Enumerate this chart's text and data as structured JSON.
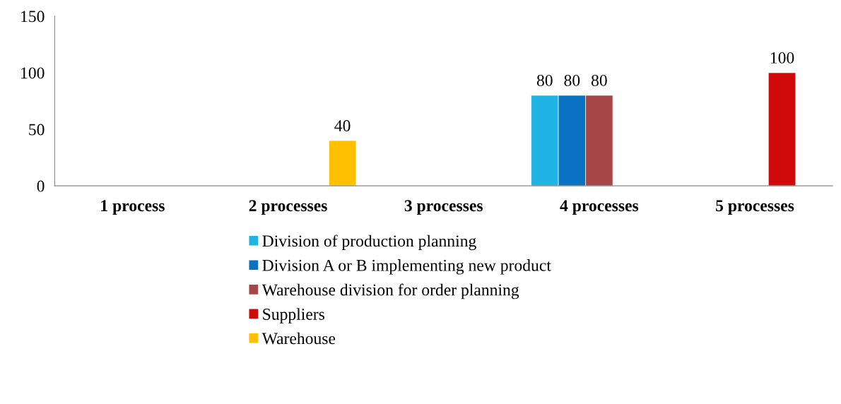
{
  "chart_data": {
    "type": "bar",
    "categories": [
      "1 process",
      "2 processes",
      "3 processes",
      "4 processes",
      "5 processes"
    ],
    "series": [
      {
        "name": "Division of production planning",
        "color": "#1fb4e4",
        "values": [
          null,
          null,
          null,
          80,
          null
        ]
      },
      {
        "name": "Division A or B implementing new product",
        "color": "#0a72c2",
        "values": [
          null,
          null,
          null,
          80,
          null
        ]
      },
      {
        "name": "Warehouse division for order planning",
        "color": "#a64646",
        "values": [
          null,
          null,
          null,
          80,
          null
        ]
      },
      {
        "name": "Suppliers",
        "color": "#d00a0a",
        "values": [
          null,
          null,
          null,
          null,
          100
        ]
      },
      {
        "name": "Warehouse",
        "color": "#ffc000",
        "values": [
          null,
          40,
          null,
          null,
          null
        ]
      }
    ],
    "ylim": [
      0,
      150
    ],
    "yticks": [
      0,
      50,
      100,
      150
    ],
    "grid": false,
    "legend": "bottom",
    "data_labels": true
  }
}
